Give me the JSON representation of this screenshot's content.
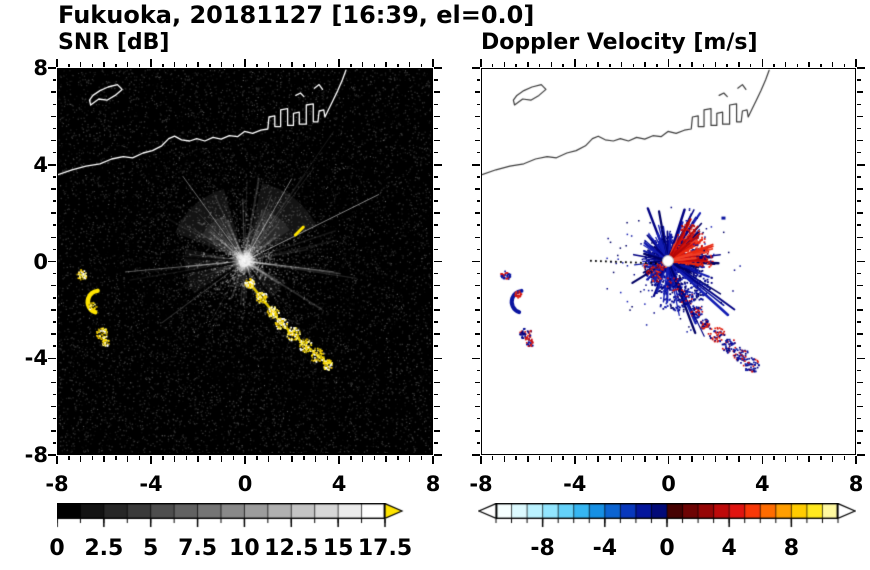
{
  "title": "Fukuoka, 20181127 [16:39, el=0.0]",
  "panels": {
    "snr": {
      "label": "SNR [dB]"
    },
    "doppler": {
      "label": "Doppler Velocity [m/s]"
    }
  },
  "chart_data": {
    "type": "heatmap",
    "description": "Two radar PPI panels for Fukuoka 2018-11-27 16:39, elevation 0.0 deg: left panel signal-to-noise ratio, right panel Doppler velocity, both on a 16x16 km domain centered on the radar",
    "axes": {
      "xlim": [
        -8,
        8
      ],
      "ylim": [
        -8,
        8
      ],
      "x_major_ticks": [
        -8,
        -4,
        0,
        4,
        8
      ],
      "y_major_ticks": [
        8,
        4,
        0,
        -4,
        -8
      ],
      "x_tick_labels": [
        "-8",
        "-4",
        "0",
        "4",
        "8"
      ],
      "y_tick_labels": [
        "8",
        "4",
        "0",
        "-4",
        "-8"
      ],
      "minor_tick_step": 0.5,
      "grid": false
    },
    "panels": [
      {
        "id": "snr",
        "title": "SNR [dB]",
        "background": "#000000",
        "coast_color": "#ffffff",
        "echo_color": "#ffe400",
        "colorbar": {
          "min": 0,
          "max": 17.5,
          "labels": [
            "0",
            "2.5",
            "5",
            "7.5",
            "10",
            "12.5",
            "15",
            "17.5"
          ],
          "label_values": [
            0,
            2.5,
            5,
            7.5,
            10,
            12.5,
            15,
            17.5
          ],
          "colors": [
            "#000000",
            "#131313",
            "#272727",
            "#3a3a3a",
            "#4e4e4e",
            "#626262",
            "#757575",
            "#898989",
            "#9c9c9c",
            "#b0b0b0",
            "#c4c4c4",
            "#d7d7d7",
            "#ebebeb",
            "#ffffff"
          ],
          "over_arrow": "#ffe400",
          "under_arrow": null
        },
        "features": {
          "radar_center": [
            0,
            0
          ],
          "ground_clutter_fan": {
            "center": [
              0,
              0
            ],
            "radius_km": 3.5
          },
          "strong_echo_arcs_west": [
            [
              -7.0,
              -0.55
            ],
            [
              -6.55,
              -1.7
            ],
            [
              -6.15,
              -3.0
            ]
          ],
          "strong_echo_chain_southeast": [
            [
              0.2,
              -0.9
            ],
            [
              0.7,
              -1.5
            ],
            [
              1.2,
              -2.1
            ],
            [
              1.55,
              -2.6
            ],
            [
              2.05,
              -3.0
            ],
            [
              2.6,
              -3.5
            ],
            [
              3.1,
              -3.9
            ],
            [
              3.55,
              -4.3
            ]
          ],
          "small_echo_northeast": [
            2.35,
            1.25
          ]
        }
      },
      {
        "id": "doppler",
        "title": "Doppler Velocity [m/s]",
        "background": "#ffffff",
        "coast_color": "#3c3c3c",
        "colorbar": {
          "min": -11,
          "max": 11,
          "labels": [
            "-8",
            "-4",
            "0",
            "4",
            "8"
          ],
          "label_values": [
            -8,
            -4,
            0,
            4,
            8
          ],
          "colors": [
            "#f6ffff",
            "#dcfaff",
            "#baf2ff",
            "#92e6ff",
            "#64d2fa",
            "#36b6f2",
            "#1690e4",
            "#0c64d2",
            "#0838bc",
            "#04169c",
            "#020a78",
            "#460202",
            "#6e0404",
            "#960606",
            "#be0a0a",
            "#e01410",
            "#f83808",
            "#ff6c00",
            "#ff9e00",
            "#ffcc00",
            "#ffe81e",
            "#fff9a0"
          ],
          "over_arrow": "#ffffff",
          "under_arrow": "#ffffff"
        },
        "features": {
          "radar_center": [
            0,
            0
          ],
          "negative_velocity_color": "#0a14a0",
          "positive_velocity_color": "#d81410",
          "blue_starburst": {
            "center": [
              0,
              0
            ],
            "radius_km": 2.2,
            "note": "spiky negative-velocity mass, strongest toward SE and N"
          },
          "red_wedge": {
            "azimuth_deg": [
              0,
              75
            ],
            "radius_km": 1.6
          },
          "echo_arcs_west": [
            [
              -7.0,
              -0.55
            ],
            [
              -6.55,
              -1.7
            ],
            [
              -6.15,
              -3.0
            ]
          ],
          "echo_chain_southeast": [
            [
              0.2,
              -0.9
            ],
            [
              0.7,
              -1.5
            ],
            [
              1.2,
              -2.1
            ],
            [
              1.55,
              -2.6
            ],
            [
              2.05,
              -3.0
            ],
            [
              2.6,
              -3.5
            ],
            [
              3.1,
              -3.9
            ],
            [
              3.55,
              -4.3
            ]
          ]
        }
      }
    ],
    "geography": {
      "coastline": [
        [
          -8,
          3.6
        ],
        [
          -7.4,
          3.8
        ],
        [
          -6.8,
          3.95
        ],
        [
          -6.2,
          4.05
        ],
        [
          -5.7,
          4.25
        ],
        [
          -5.2,
          4.35
        ],
        [
          -4.8,
          4.3
        ],
        [
          -4.35,
          4.5
        ],
        [
          -3.95,
          4.6
        ],
        [
          -3.55,
          4.8
        ],
        [
          -3.25,
          5.1
        ],
        [
          -3.0,
          5.2
        ],
        [
          -2.7,
          5.05
        ],
        [
          -2.35,
          5.0
        ],
        [
          -2.05,
          5.1
        ],
        [
          -1.7,
          5.0
        ],
        [
          -1.35,
          5.15
        ],
        [
          -1.0,
          5.08
        ],
        [
          -0.65,
          5.22
        ],
        [
          -0.3,
          5.18
        ],
        [
          0.0,
          5.4
        ],
        [
          0.35,
          5.32
        ],
        [
          0.7,
          5.45
        ],
        [
          1.0,
          5.5
        ],
        [
          1.05,
          6.0
        ],
        [
          1.3,
          6.05
        ],
        [
          1.3,
          5.6
        ],
        [
          1.55,
          5.6
        ],
        [
          1.55,
          6.3
        ],
        [
          1.85,
          6.35
        ],
        [
          1.85,
          5.65
        ],
        [
          2.1,
          5.65
        ],
        [
          2.1,
          6.15
        ],
        [
          2.35,
          6.2
        ],
        [
          2.35,
          5.7
        ],
        [
          2.65,
          5.7
        ],
        [
          2.65,
          6.5
        ],
        [
          2.95,
          6.55
        ],
        [
          2.95,
          5.8
        ],
        [
          3.15,
          5.8
        ],
        [
          3.2,
          6.25
        ],
        [
          3.4,
          6.3
        ],
        [
          3.45,
          6.0
        ],
        [
          3.6,
          6.3
        ],
        [
          3.8,
          6.7
        ],
        [
          4.0,
          7.1
        ],
        [
          4.2,
          7.55
        ],
        [
          4.35,
          7.95
        ]
      ],
      "island": [
        [
          -6.6,
          6.5
        ],
        [
          -6.25,
          6.75
        ],
        [
          -5.9,
          6.7
        ],
        [
          -5.55,
          6.9
        ],
        [
          -5.25,
          7.15
        ],
        [
          -5.45,
          7.35
        ],
        [
          -5.85,
          7.25
        ],
        [
          -6.2,
          7.1
        ],
        [
          -6.5,
          6.9
        ],
        [
          -6.65,
          6.7
        ]
      ],
      "islets": [
        [
          [
            2.2,
            6.9
          ],
          [
            2.4,
            7.0
          ],
          [
            2.55,
            6.85
          ]
        ],
        [
          [
            3.0,
            7.2
          ],
          [
            3.2,
            7.35
          ],
          [
            3.35,
            7.15
          ]
        ]
      ]
    }
  }
}
